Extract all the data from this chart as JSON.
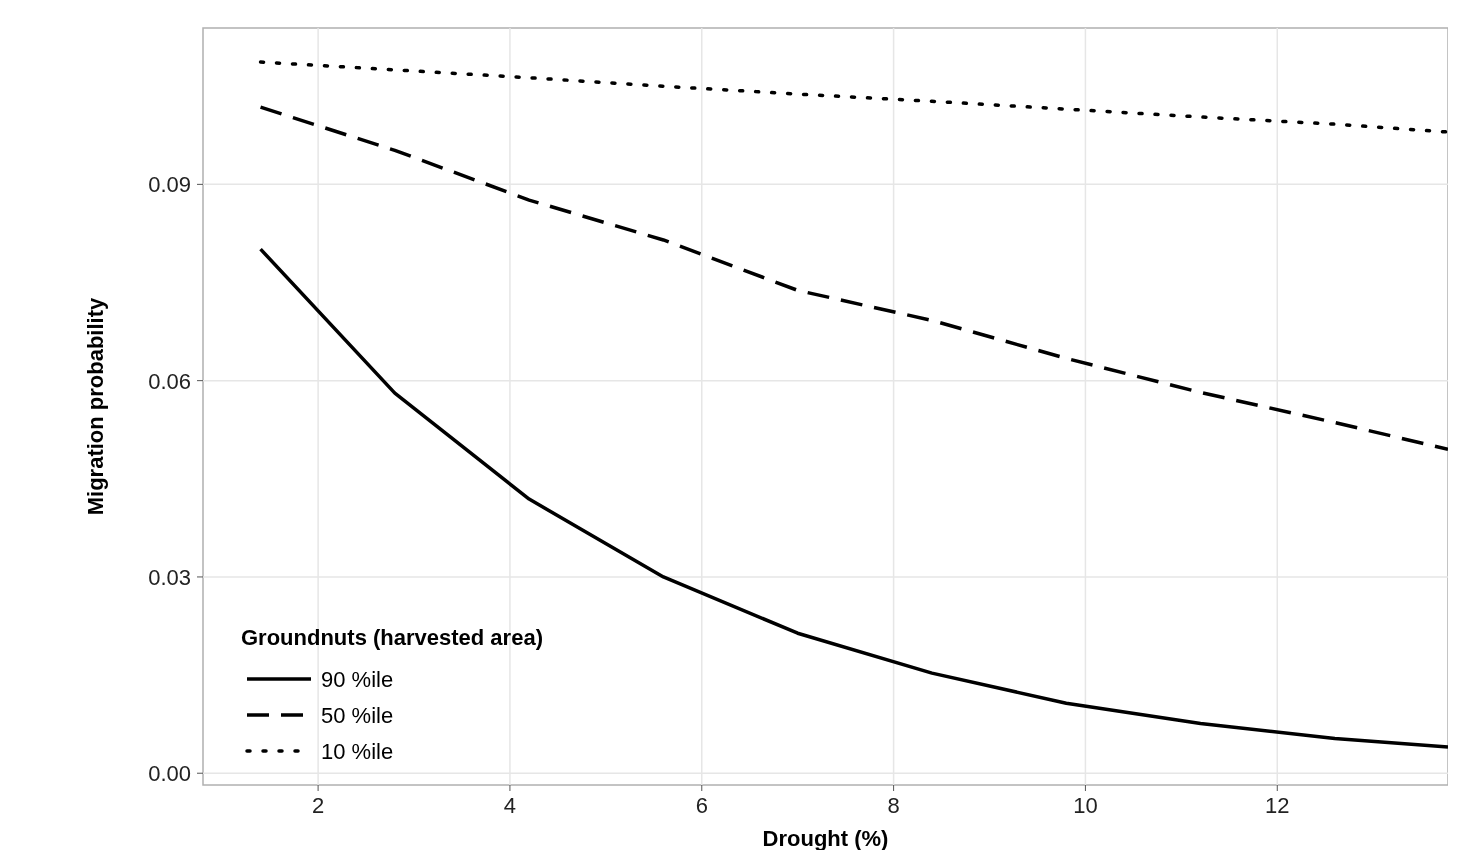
{
  "chart_data": {
    "type": "line",
    "xlabel": "Drought (%)",
    "ylabel": "Migration probability",
    "legend_title": "Groundnuts (harvested area)",
    "x": [
      1.4,
      2.8,
      4.2,
      5.6,
      7.0,
      8.4,
      9.8,
      11.2,
      12.6,
      13.78
    ],
    "series": [
      {
        "name": "90 %ile",
        "color": "#000000",
        "line_style": "solid",
        "values": [
          0.0801,
          0.0581,
          0.0419,
          0.03,
          0.0214,
          0.0153,
          0.0107,
          0.0076,
          0.0053,
          0.004
        ]
      },
      {
        "name": "50 %ile",
        "color": "#000000",
        "line_style": "dashed",
        "values": [
          0.1018,
          0.0952,
          0.0876,
          0.0815,
          0.0738,
          0.0692,
          0.0634,
          0.0582,
          0.0536,
          0.0495
        ]
      },
      {
        "name": "10 %ile",
        "color": "#000000",
        "line_style": "dotted",
        "values": [
          0.1087,
          0.1075,
          0.1063,
          0.105,
          0.1038,
          0.1027,
          0.1015,
          0.1003,
          0.0992,
          0.098
        ]
      }
    ],
    "xlim": [
      0.8,
      13.78
    ],
    "xticks": [
      2,
      4,
      6,
      8,
      10,
      12
    ],
    "ylim": [
      -0.0018,
      0.1139
    ],
    "yticks": [
      {
        "value": 0,
        "label": "0.00"
      },
      {
        "value": 0.03,
        "label": "0.03"
      },
      {
        "value": 0.06,
        "label": "0.06"
      },
      {
        "value": 0.09,
        "label": "0.09"
      }
    ],
    "grid": true,
    "legend": "bottom left",
    "marker": "none"
  }
}
